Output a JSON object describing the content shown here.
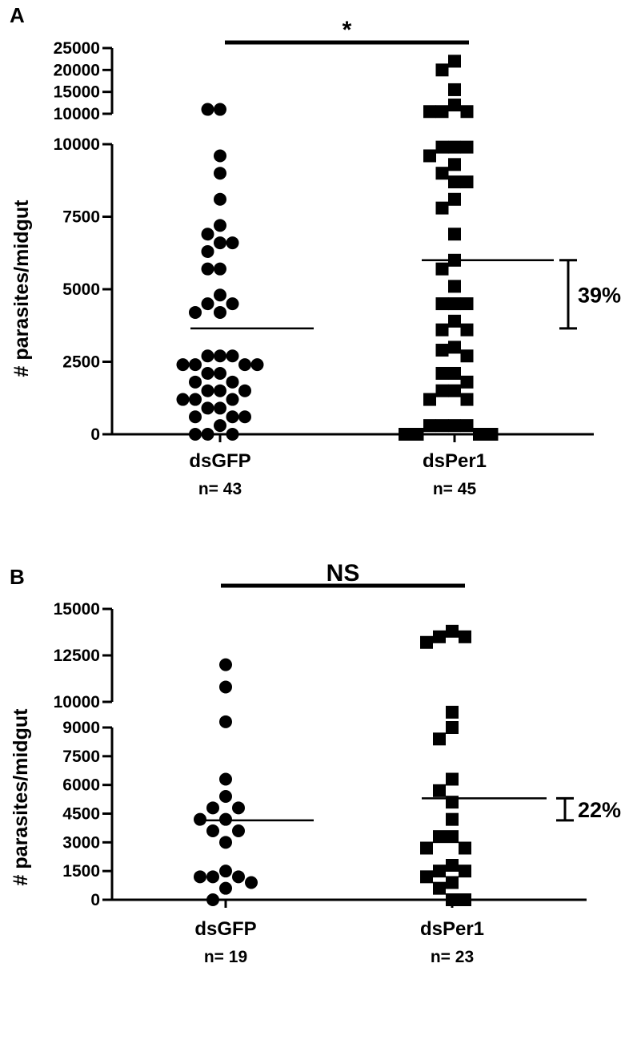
{
  "chart_data": [
    {
      "type": "scatter",
      "panel": "A",
      "ylabel": "# parasites/midgut",
      "categories": [
        "dsGFP",
        "dsPer1"
      ],
      "n_labels": [
        "n= 43",
        "n= 45"
      ],
      "ylim": [
        0,
        25000
      ],
      "axis_break_at": 10000,
      "yticks_lower": [
        0,
        2500,
        5000,
        7500,
        10000
      ],
      "yticks_upper": [
        10000,
        15000,
        20000,
        25000
      ],
      "significance": "*",
      "reduction_label": "39%",
      "series": [
        {
          "category": "dsGFP",
          "marker": "circle",
          "mean": 3650,
          "values": [
            11000,
            11000,
            9600,
            9000,
            8100,
            7200,
            6900,
            6600,
            6600,
            6300,
            5700,
            5700,
            4800,
            4500,
            4500,
            4200,
            4200,
            2700,
            2700,
            2700,
            2400,
            2400,
            2400,
            2400,
            2100,
            2100,
            1800,
            1800,
            1500,
            1500,
            1500,
            1200,
            1200,
            1200,
            900,
            900,
            600,
            600,
            600,
            300,
            0,
            0,
            0
          ]
        },
        {
          "category": "dsPer1",
          "marker": "square",
          "mean": 6000,
          "values": [
            22000,
            20000,
            15500,
            12000,
            10500,
            10500,
            10500,
            9900,
            9900,
            9900,
            9600,
            9300,
            9000,
            8700,
            8700,
            8100,
            7800,
            6900,
            6000,
            5700,
            5100,
            4500,
            4500,
            4500,
            3900,
            3600,
            3600,
            3000,
            2900,
            2700,
            2100,
            2100,
            1800,
            1500,
            1500,
            1200,
            1200,
            300,
            300,
            300,
            300,
            0,
            0,
            0,
            0
          ]
        }
      ]
    },
    {
      "type": "scatter",
      "panel": "B",
      "ylabel": "# parasites/midgut",
      "categories": [
        "dsGFP",
        "dsPer1"
      ],
      "n_labels": [
        "n= 19",
        "n= 23"
      ],
      "ylim": [
        0,
        15000
      ],
      "axis_break_at": 10000,
      "yticks_lower": [
        0,
        1500,
        3000,
        4500,
        6000,
        7500,
        9000
      ],
      "yticks_upper": [
        10000,
        12500,
        15000
      ],
      "significance": "NS",
      "reduction_label": "22%",
      "series": [
        {
          "category": "dsGFP",
          "marker": "circle",
          "mean": 4150,
          "values": [
            12000,
            10800,
            9300,
            6300,
            5400,
            4800,
            4800,
            4200,
            4200,
            3600,
            3600,
            3000,
            1500,
            1200,
            1200,
            1200,
            900,
            600,
            0
          ]
        },
        {
          "category": "dsPer1",
          "marker": "square",
          "mean": 5300,
          "values": [
            13800,
            13500,
            13500,
            13200,
            9800,
            9000,
            8400,
            6300,
            5700,
            5100,
            4200,
            3300,
            3300,
            2700,
            2700,
            1800,
            1500,
            1500,
            1200,
            900,
            600,
            0,
            0
          ]
        }
      ]
    }
  ]
}
